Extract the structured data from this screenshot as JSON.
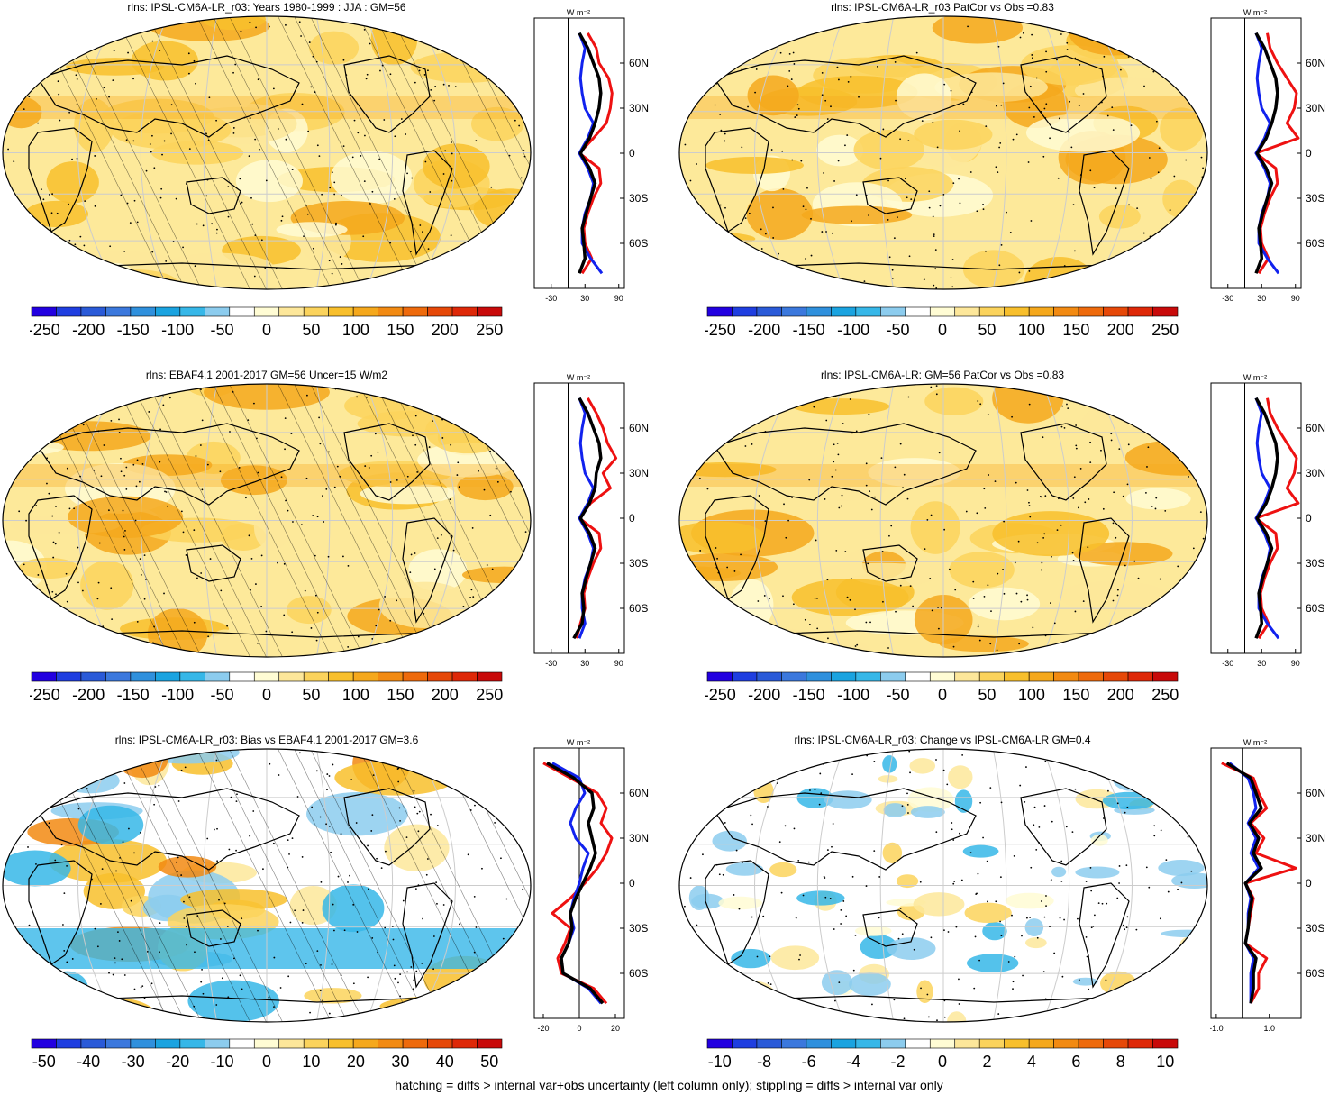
{
  "footer": "hatching = diffs > internal var+obs uncertainty (left column only); stippling = diffs > internal var only",
  "colors": {
    "bar_scale": [
      "#2200e0",
      "#1f3ee0",
      "#2a5ad8",
      "#3b78dd",
      "#2f90dd",
      "#1aa3e0",
      "#36b7e8",
      "#8cccee",
      "#ffffff",
      "#fffcd4",
      "#fde79a",
      "#fbd35c",
      "#f8bf2c",
      "#f5a81c",
      "#f28a12",
      "#ee6a0c",
      "#e64808",
      "#de2808",
      "#c80a0a"
    ],
    "ocean_base": "#fde99a",
    "line_red": "#ee1111",
    "line_blue": "#1122ee",
    "line_black": "#000000"
  },
  "profile_unit": "W m⁻²",
  "lat_ticks": [
    "60N",
    "30N",
    "0",
    "30S",
    "60S"
  ],
  "chart_data": [
    {
      "type": "heatmap",
      "title": "rlns: IPSL-CM6A-LR_r03: Years 1980-1999 : JJA : GM=56",
      "colorbar_ticks": [
        "-250",
        "-200",
        "-150",
        "-100",
        "-50",
        "0",
        "50",
        "100",
        "150",
        "200",
        "250"
      ],
      "profile": {
        "x_ticks": [
          "-30",
          "30",
          "90"
        ],
        "xlim": [
          -60,
          100
        ],
        "lat": [
          80,
          70,
          60,
          50,
          40,
          30,
          20,
          10,
          0,
          -10,
          -20,
          -30,
          -40,
          -50,
          -60,
          -70,
          -80
        ],
        "series": [
          {
            "color": "red",
            "values": [
              35,
              50,
              55,
              72,
              78,
              75,
              68,
              45,
              20,
              55,
              58,
              45,
              35,
              28,
              30,
              42,
              25
            ]
          },
          {
            "color": "blue",
            "values": [
              20,
              30,
              25,
              22,
              25,
              30,
              45,
              35,
              20,
              35,
              45,
              40,
              30,
              25,
              25,
              40,
              60
            ]
          },
          {
            "color": "black",
            "values": [
              20,
              35,
              45,
              55,
              58,
              55,
              48,
              38,
              22,
              38,
              48,
              40,
              32,
              25,
              28,
              30,
              20
            ]
          }
        ]
      }
    },
    {
      "type": "heatmap",
      "title": "rlns: IPSL-CM6A-LR_r03 PatCor vs Obs =0.83",
      "colorbar_ticks": [
        "-250",
        "-200",
        "-150",
        "-100",
        "-50",
        "0",
        "50",
        "100",
        "150",
        "200",
        "250"
      ],
      "profile": {
        "x_ticks": [
          "-30",
          "30",
          "90"
        ],
        "xlim": [
          -60,
          100
        ],
        "lat": [
          80,
          70,
          60,
          50,
          40,
          30,
          20,
          10,
          0,
          -10,
          -20,
          -30,
          -40,
          -50,
          -60,
          -70,
          -80
        ],
        "series": [
          {
            "color": "red",
            "values": [
              40,
              45,
              58,
              75,
              92,
              88,
              75,
              95,
              20,
              55,
              58,
              45,
              35,
              28,
              30,
              42,
              25
            ]
          },
          {
            "color": "blue",
            "values": [
              20,
              30,
              25,
              22,
              25,
              30,
              45,
              35,
              20,
              35,
              45,
              40,
              30,
              25,
              25,
              40,
              60
            ]
          },
          {
            "color": "black",
            "values": [
              20,
              35,
              45,
              55,
              58,
              55,
              48,
              38,
              22,
              38,
              48,
              40,
              32,
              25,
              28,
              30,
              20
            ]
          }
        ]
      }
    },
    {
      "type": "heatmap",
      "title": "rlns: EBAF4.1 2001-2017 GM=56 Uncer=15 W/m2",
      "colorbar_ticks": [
        "-250",
        "-200",
        "-150",
        "-100",
        "-50",
        "0",
        "50",
        "100",
        "150",
        "200",
        "250"
      ],
      "profile": {
        "x_ticks": [
          "-30",
          "30",
          "90"
        ],
        "xlim": [
          -60,
          100
        ],
        "lat": [
          80,
          70,
          60,
          50,
          40,
          30,
          20,
          10,
          0,
          -10,
          -20,
          -30,
          -40,
          -50,
          -60,
          -70,
          -80
        ],
        "series": [
          {
            "color": "red",
            "values": [
              35,
              50,
              62,
              70,
              85,
              62,
              75,
              40,
              20,
              55,
              58,
              45,
              35,
              28,
              30,
              22,
              15
            ]
          },
          {
            "color": "blue",
            "values": [
              20,
              30,
              25,
              22,
              25,
              30,
              45,
              35,
              20,
              35,
              45,
              40,
              30,
              25,
              25,
              30,
              20
            ]
          },
          {
            "color": "black",
            "values": [
              20,
              35,
              45,
              55,
              58,
              50,
              48,
              38,
              22,
              38,
              48,
              40,
              32,
              25,
              28,
              25,
              10
            ]
          }
        ]
      }
    },
    {
      "type": "heatmap",
      "title": "rlns: IPSL-CM6A-LR: GM=56 PatCor vs Obs =0.83",
      "colorbar_ticks": [
        "-250",
        "-200",
        "-150",
        "-100",
        "-50",
        "0",
        "50",
        "100",
        "150",
        "200",
        "250"
      ],
      "profile": {
        "x_ticks": [
          "-30",
          "30",
          "90"
        ],
        "xlim": [
          -60,
          100
        ],
        "lat": [
          80,
          70,
          60,
          50,
          40,
          30,
          20,
          10,
          0,
          -10,
          -20,
          -30,
          -40,
          -50,
          -60,
          -70,
          -80
        ],
        "series": [
          {
            "color": "red",
            "values": [
              40,
              45,
              58,
              75,
              92,
              88,
              75,
              95,
              20,
              55,
              58,
              45,
              35,
              28,
              30,
              42,
              25
            ]
          },
          {
            "color": "blue",
            "values": [
              20,
              30,
              25,
              22,
              25,
              30,
              45,
              35,
              20,
              35,
              45,
              40,
              30,
              25,
              25,
              40,
              60
            ]
          },
          {
            "color": "black",
            "values": [
              20,
              35,
              45,
              55,
              58,
              55,
              48,
              38,
              22,
              38,
              48,
              40,
              32,
              25,
              28,
              30,
              20
            ]
          }
        ]
      }
    },
    {
      "type": "heatmap",
      "title": "rlns: IPSL-CM6A-LR_r03: Bias vs EBAF4.1 2001-2017 GM=3.6",
      "colorbar_ticks": [
        "-50",
        "-40",
        "-30",
        "-20",
        "-10",
        "0",
        "10",
        "20",
        "30",
        "40",
        "50"
      ],
      "profile": {
        "x_ticks": [
          "-20",
          "0",
          "20"
        ],
        "xlim": [
          -25,
          25
        ],
        "lat": [
          80,
          70,
          60,
          50,
          40,
          30,
          20,
          10,
          0,
          -10,
          -20,
          -30,
          -40,
          -50,
          -60,
          -70,
          -80
        ],
        "series": [
          {
            "color": "red",
            "values": [
              -20,
              -5,
              10,
              15,
              12,
              18,
              15,
              10,
              3,
              -5,
              -15,
              -5,
              -8,
              -12,
              -10,
              8,
              15
            ]
          },
          {
            "color": "blue",
            "values": [
              -15,
              0,
              3,
              -2,
              -5,
              -2,
              5,
              2,
              0,
              -3,
              -5,
              -3,
              -6,
              -10,
              -9,
              5,
              12
            ]
          },
          {
            "color": "black",
            "values": [
              -18,
              -3,
              7,
              8,
              5,
              7,
              9,
              6,
              2,
              -2,
              -5,
              -4,
              -6,
              -10,
              -9,
              6,
              13
            ]
          }
        ]
      }
    },
    {
      "type": "heatmap",
      "title": "rlns: IPSL-CM6A-LR_r03: Change vs IPSL-CM6A-LR GM=0.4",
      "colorbar_ticks": [
        "-10",
        "-8",
        "-6",
        "-4",
        "-2",
        "0",
        "2",
        "4",
        "6",
        "8",
        "10"
      ],
      "profile": {
        "x_ticks": [
          "-1.0",
          "1.0"
        ],
        "xlim": [
          -1.2,
          2.2
        ],
        "lat": [
          80,
          70,
          60,
          50,
          40,
          30,
          20,
          10,
          0,
          -10,
          -20,
          -30,
          -40,
          -50,
          -60,
          -70,
          -80
        ],
        "series": [
          {
            "color": "red",
            "values": [
              -0.8,
              0.4,
              0.6,
              0.9,
              0.3,
              0.8,
              0.5,
              2.0,
              0.1,
              0.4,
              0.3,
              0.2,
              0.1,
              0.9,
              0.6,
              0.6,
              0.3
            ]
          },
          {
            "color": "blue",
            "values": [
              -0.5,
              0.2,
              0.4,
              0.5,
              0.2,
              0.5,
              0.3,
              0.6,
              0.1,
              0.3,
              0.2,
              0.2,
              0.1,
              0.4,
              0.3,
              0.3,
              0.3
            ]
          },
          {
            "color": "black",
            "values": [
              -0.6,
              0.3,
              0.5,
              0.7,
              0.25,
              0.6,
              0.4,
              0.7,
              0.1,
              0.35,
              0.25,
              0.2,
              0.1,
              0.5,
              0.4,
              0.4,
              0.3
            ]
          }
        ]
      }
    }
  ]
}
